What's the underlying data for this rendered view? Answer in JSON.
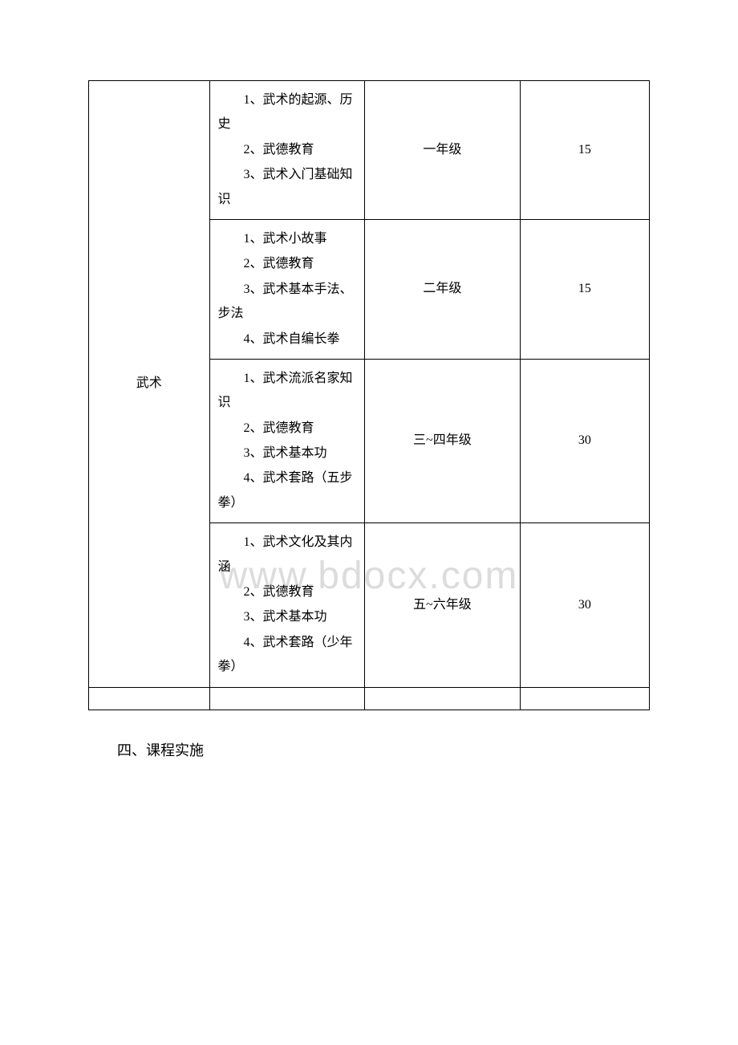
{
  "table": {
    "category": "武术",
    "columns": {
      "category_width": 140,
      "content_width": 180,
      "grade_width": 180,
      "hours_width": 150
    },
    "rows": [
      {
        "items": [
          "1、武术的起源、历史",
          "2、武德教育",
          "3、武术入门基础知识"
        ],
        "grade": "一年级",
        "hours": "15"
      },
      {
        "items": [
          "1、武术小故事",
          "2、武德教育",
          "3、武术基本手法、步法",
          "4、武术自编长拳"
        ],
        "grade": "二年级",
        "hours": "15"
      },
      {
        "items": [
          "1、武术流派名家知识",
          "2、武德教育",
          "3、武术基本功",
          "4、武术套路（五步拳）"
        ],
        "grade": "三~四年级",
        "hours": "30"
      },
      {
        "items": [
          "1、武术文化及其内涵",
          "2、武德教育",
          "3、武术基本功",
          "4、武术套路（少年拳）"
        ],
        "grade": "五~六年级",
        "hours": "30"
      }
    ]
  },
  "section_title": "四、课程实施",
  "watermark": "www.bdocx.com",
  "styles": {
    "background_color": "#ffffff",
    "border_color": "#000000",
    "text_color": "#000000",
    "watermark_color": "#dcdcdc",
    "font_family": "SimSun",
    "cell_fontsize": 16,
    "title_fontsize": 18,
    "watermark_fontsize": 48
  }
}
